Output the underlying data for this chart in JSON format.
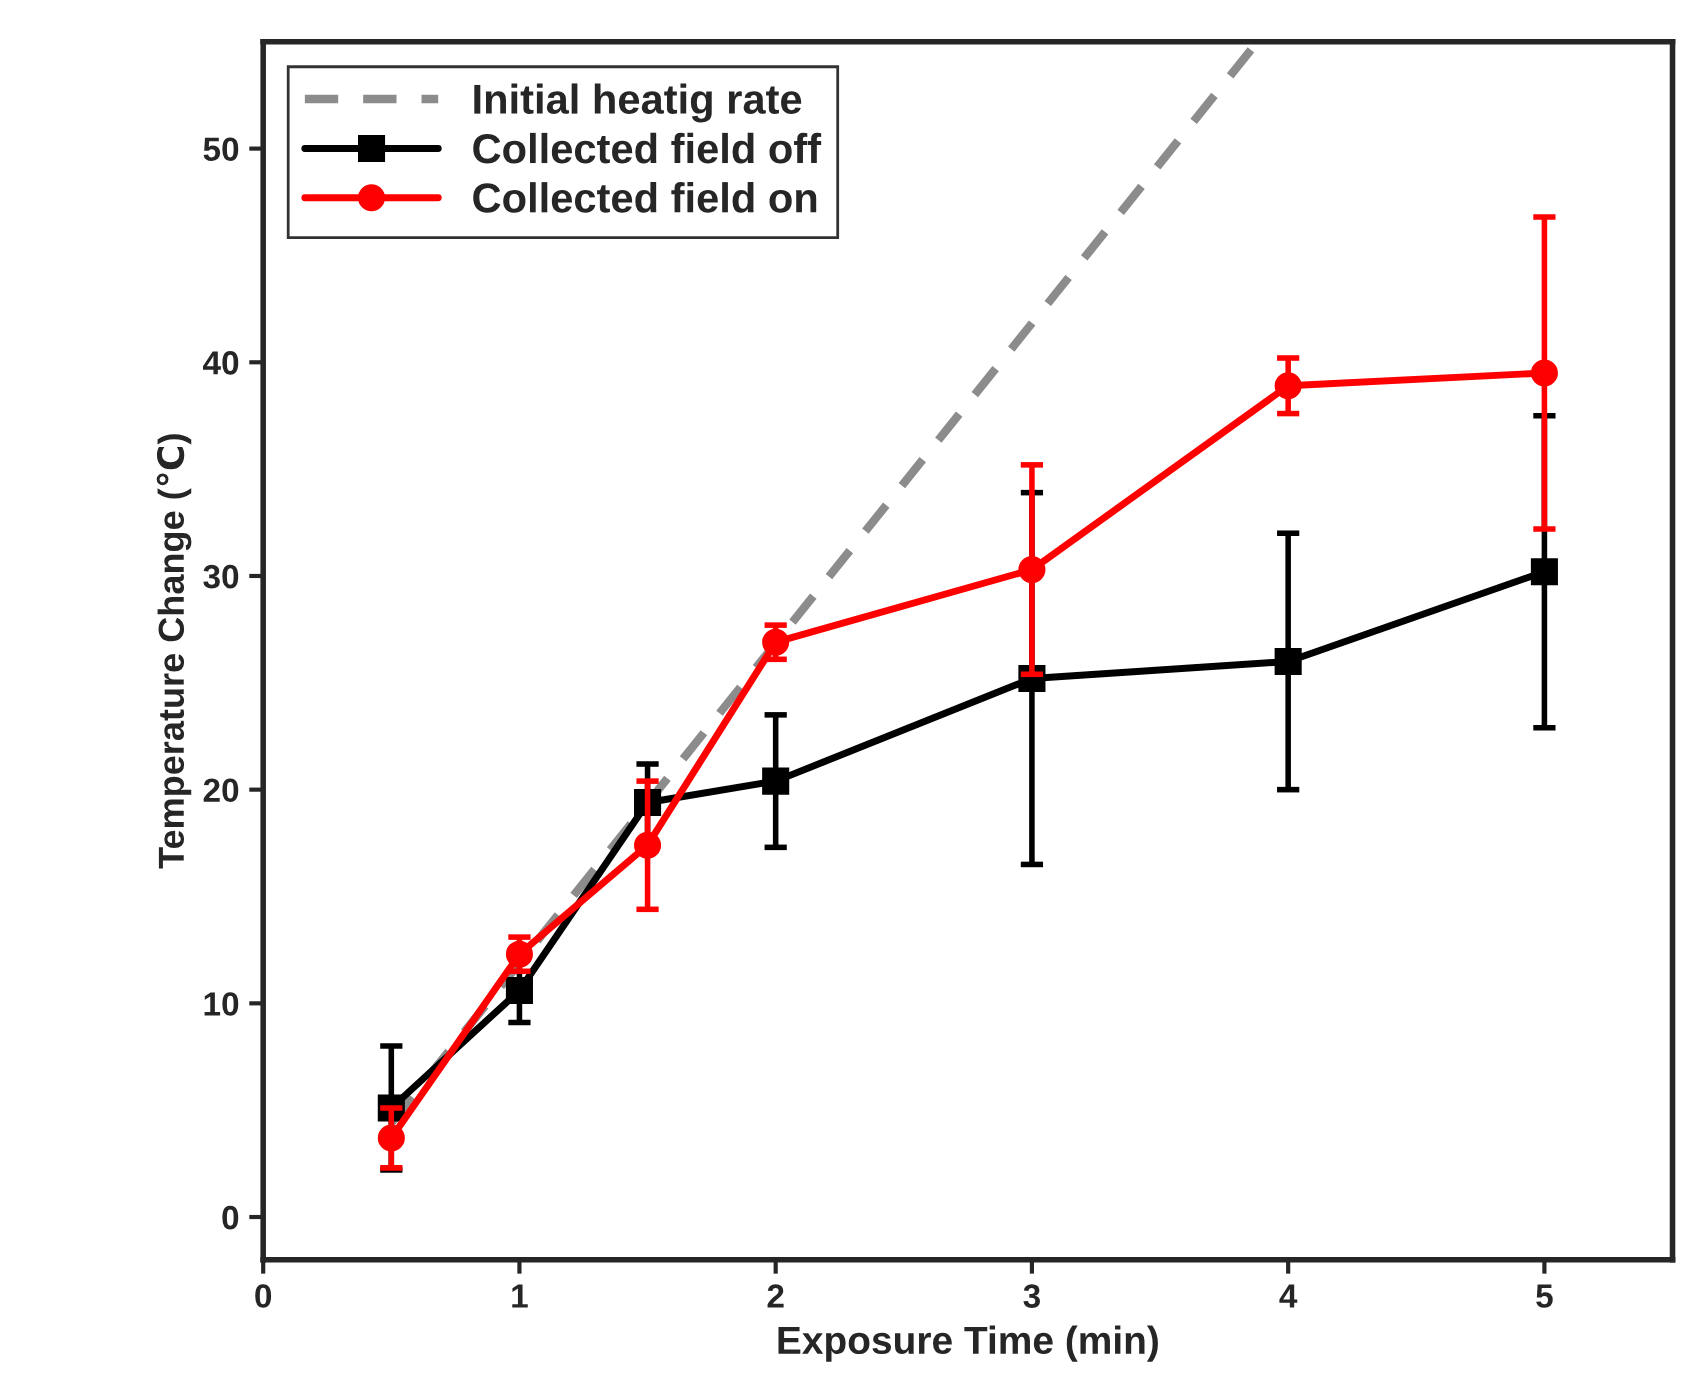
{
  "chart_data": {
    "type": "line",
    "xlabel": "Exposure Time (min)",
    "ylabel": "Temperature Change (℃)",
    "xlim": [
      0,
      5.5
    ],
    "xticks": [
      0,
      1,
      2,
      3,
      4,
      5
    ],
    "ylim": [
      -2,
      55
    ],
    "yticks": [
      0,
      10,
      20,
      30,
      40,
      50
    ],
    "grid": false,
    "legend": "top left",
    "series": [
      {
        "name": "Initial heatig rate",
        "color": "#8c8c8c",
        "line_style": "dashed",
        "marker": "none",
        "x": [
          0.5,
          3.88
        ],
        "values": [
          4.4,
          55
        ]
      },
      {
        "name": "Collected field off",
        "color": "#000000",
        "marker": "square",
        "x": [
          0.5,
          1,
          1.5,
          2,
          3,
          4,
          5
        ],
        "values": [
          5.1,
          10.6,
          19.4,
          20.4,
          25.2,
          26.0,
          30.2
        ],
        "errors": [
          2.9,
          1.5,
          1.8,
          3.1,
          8.7,
          6.0,
          7.3
        ]
      },
      {
        "name": "Collected field on",
        "color": "#ff0000",
        "marker": "circle",
        "x": [
          0.5,
          1,
          1.5,
          2,
          3,
          4,
          5
        ],
        "values": [
          3.7,
          12.3,
          17.4,
          26.9,
          30.3,
          38.9,
          39.5
        ],
        "errors": [
          1.4,
          0.8,
          3.0,
          0.8,
          4.9,
          1.3,
          7.3
        ]
      }
    ]
  }
}
